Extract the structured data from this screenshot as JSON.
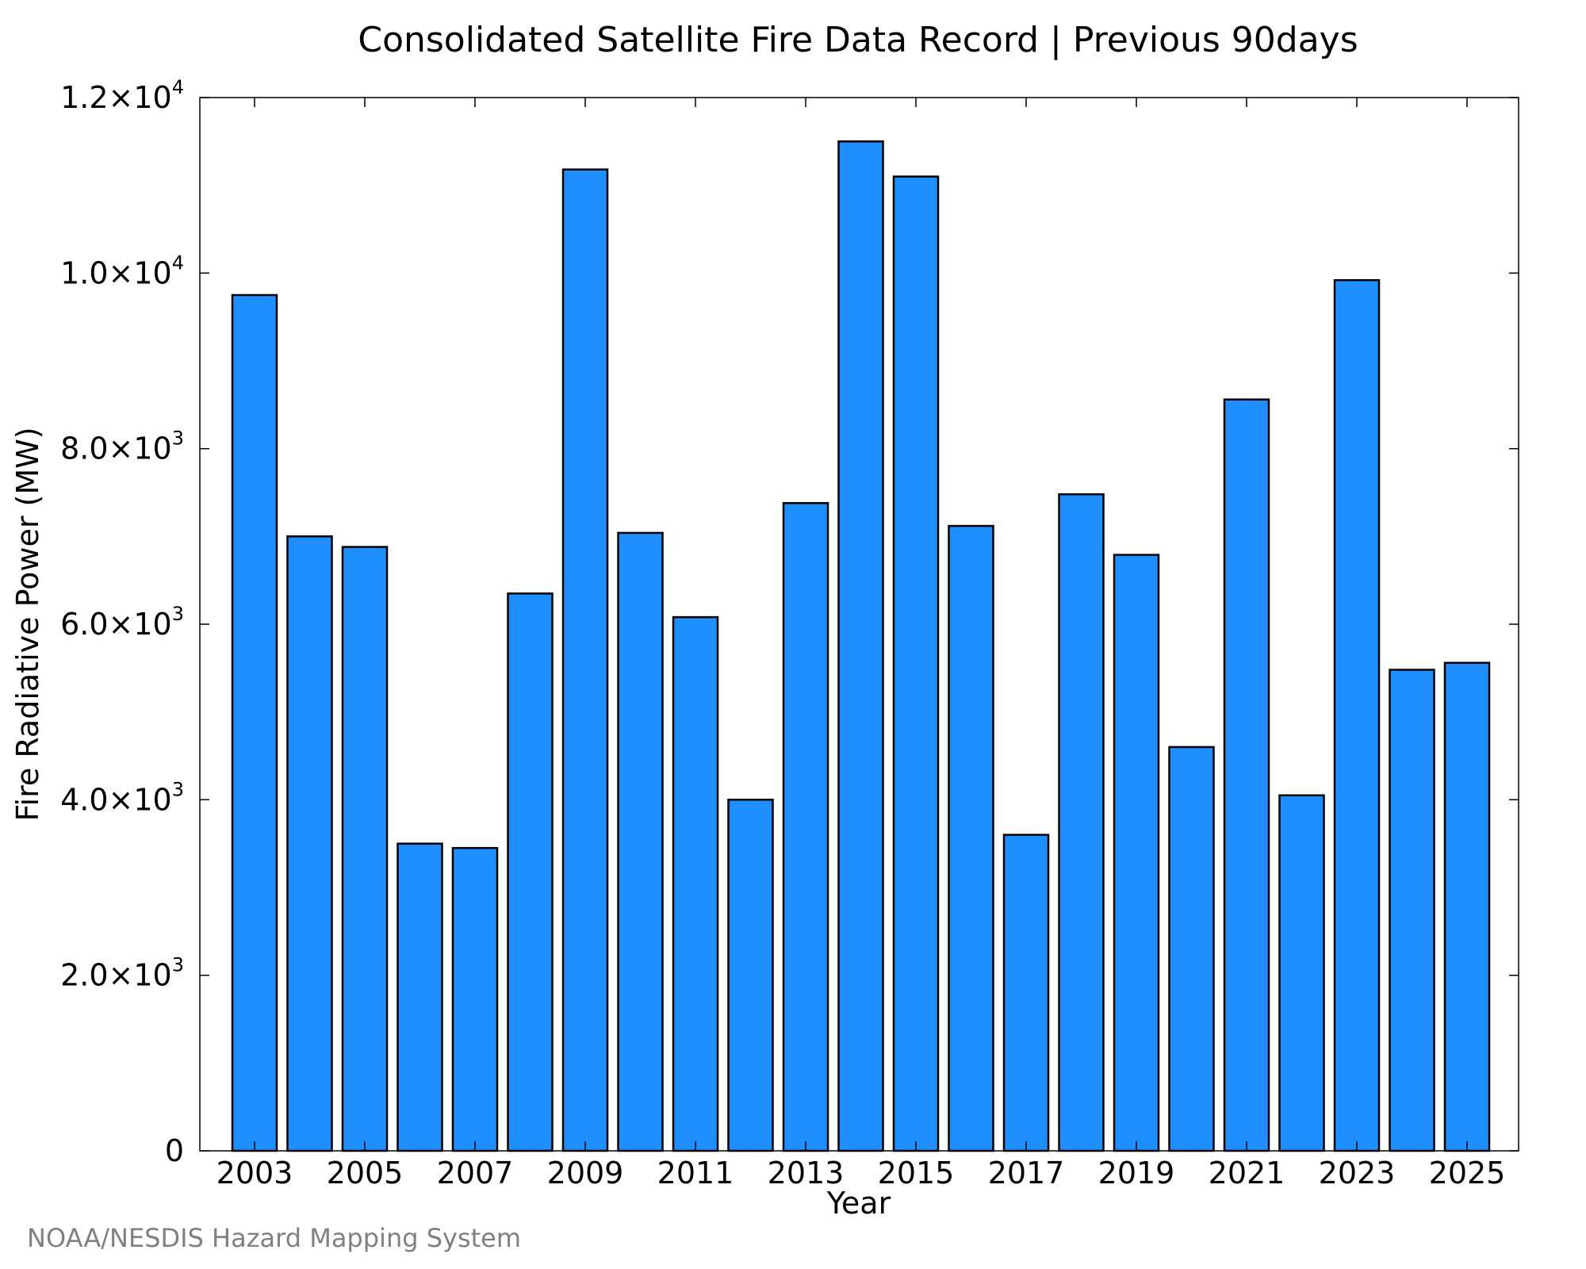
{
  "chart_data": {
    "type": "bar",
    "title": "Consolidated Satellite Fire Data Record | Previous 90days",
    "xlabel": "Year",
    "ylabel": "Fire Radiative Power (MW)",
    "categories": [
      "2003",
      "2004",
      "2005",
      "2006",
      "2007",
      "2008",
      "2009",
      "2010",
      "2011",
      "2012",
      "2013",
      "2014",
      "2015",
      "2016",
      "2017",
      "2018",
      "2019",
      "2020",
      "2021",
      "2022",
      "2023",
      "2024",
      "2025"
    ],
    "values": [
      9750,
      7000,
      6880,
      3500,
      3450,
      6350,
      11180,
      7040,
      6080,
      4000,
      7380,
      11500,
      11100,
      7120,
      3600,
      7480,
      6790,
      4600,
      8560,
      4050,
      9920,
      5480,
      5560
    ],
    "x_tick_labels": [
      "2003",
      "2005",
      "2007",
      "2009",
      "2011",
      "2013",
      "2015",
      "2017",
      "2019",
      "2021",
      "2023",
      "2025"
    ],
    "ylim": [
      0,
      12000
    ],
    "y_ticks": [
      {
        "value": 0,
        "mantissa": "0",
        "exp": ""
      },
      {
        "value": 2000,
        "mantissa": "2.0×10",
        "exp": "3"
      },
      {
        "value": 4000,
        "mantissa": "4.0×10",
        "exp": "3"
      },
      {
        "value": 6000,
        "mantissa": "6.0×10",
        "exp": "3"
      },
      {
        "value": 8000,
        "mantissa": "8.0×10",
        "exp": "3"
      },
      {
        "value": 10000,
        "mantissa": "1.0×10",
        "exp": "4"
      },
      {
        "value": 12000,
        "mantissa": "1.2×10",
        "exp": "4"
      }
    ],
    "grid": false,
    "legend": "none",
    "bar_color": "#1f8fff",
    "bar_edge_color": "#000000"
  },
  "credit": "NOAA/NESDIS Hazard Mapping System"
}
